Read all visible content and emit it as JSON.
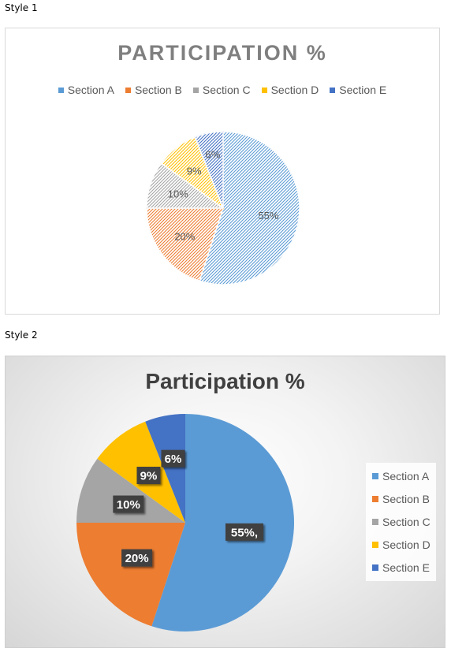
{
  "labels": {
    "style1": "Style 1",
    "style2": "Style 2"
  },
  "chart_data": [
    {
      "type": "pie",
      "title": "PARTICIPATION %",
      "categories": [
        "Section A",
        "Section B",
        "Section C",
        "Section D",
        "Section E"
      ],
      "values": [
        55,
        20,
        10,
        9,
        6
      ],
      "data_labels": [
        "55%",
        "20%",
        "10%",
        "9%",
        "6%"
      ],
      "colors": [
        "#5b9bd5",
        "#ed7d31",
        "#a5a5a5",
        "#ffc000",
        "#4472c4"
      ],
      "fill_style": "hatched",
      "legend_position": "top"
    },
    {
      "type": "pie",
      "title": "Participation %",
      "categories": [
        "Section A",
        "Section B",
        "Section C",
        "Section D",
        "Section E"
      ],
      "values": [
        55,
        20,
        10,
        9,
        6
      ],
      "data_labels": [
        "55%,",
        "20%",
        "10%",
        "9%",
        "6%"
      ],
      "colors": [
        "#5b9bd5",
        "#ed7d31",
        "#a5a5a5",
        "#ffc000",
        "#4472c4"
      ],
      "fill_style": "solid",
      "legend_position": "right"
    }
  ]
}
